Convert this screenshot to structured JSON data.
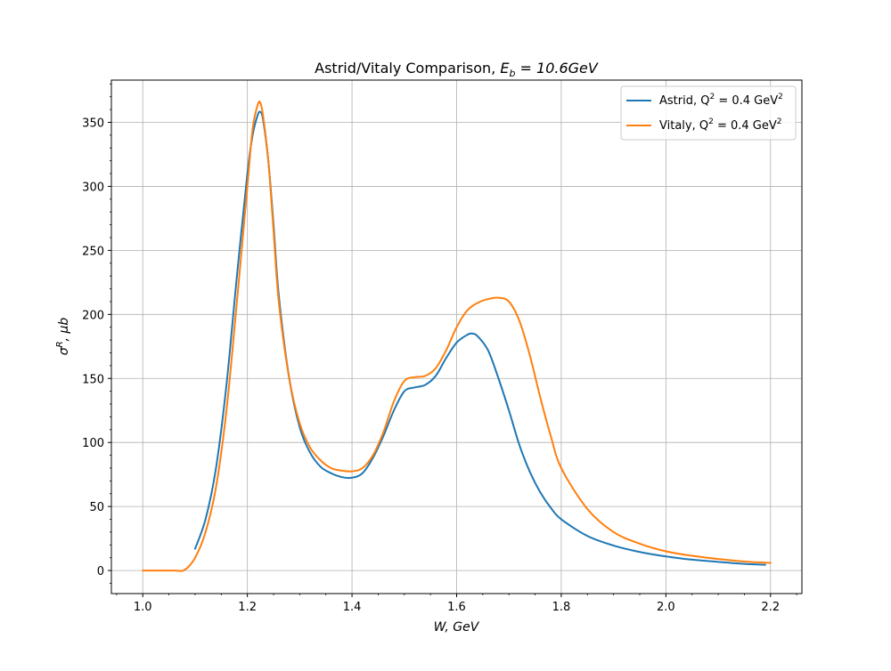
{
  "chart_data": {
    "type": "line",
    "title": "Astrid/Vitaly Comparison, E_b = 10.6GeV",
    "title_parts": {
      "prefix": "Astrid/Vitaly Comparison, ",
      "sym": "E",
      "sub": "b",
      "suffix": " = 10.6GeV"
    },
    "xlabel": "W, GeV",
    "ylabel": "σ^R, μb",
    "ylabel_parts": {
      "sym": "σ",
      "sup": "R",
      "suffix": ", μb"
    },
    "xlim": [
      0.94,
      2.26
    ],
    "ylim": [
      -18,
      383
    ],
    "x_ticks": [
      1.0,
      1.2,
      1.4,
      1.6,
      1.8,
      2.0,
      2.2
    ],
    "x_tick_labels": [
      "1.0",
      "1.2",
      "1.4",
      "1.6",
      "1.8",
      "2.0",
      "2.2"
    ],
    "y_ticks": [
      0,
      50,
      100,
      150,
      200,
      250,
      300,
      350
    ],
    "y_tick_labels": [
      "0",
      "50",
      "100",
      "150",
      "200",
      "250",
      "300",
      "350"
    ],
    "grid": true,
    "legend_position": "top-right",
    "series": [
      {
        "name": "Astrid, Q^2 = 0.4 GeV^2",
        "label_parts": {
          "prefix": "Astrid, Q",
          "sup": "2",
          "mid": " = 0.4 GeV",
          "sup2": "2"
        },
        "color": "#1f77b4",
        "x": [
          1.1,
          1.12,
          1.14,
          1.16,
          1.18,
          1.2,
          1.21,
          1.22,
          1.225,
          1.23,
          1.24,
          1.25,
          1.26,
          1.28,
          1.3,
          1.32,
          1.34,
          1.36,
          1.38,
          1.4,
          1.42,
          1.44,
          1.46,
          1.48,
          1.5,
          1.52,
          1.54,
          1.56,
          1.58,
          1.6,
          1.62,
          1.63,
          1.64,
          1.66,
          1.68,
          1.7,
          1.72,
          1.74,
          1.76,
          1.78,
          1.8,
          1.85,
          1.9,
          1.95,
          2.0,
          2.05,
          2.1,
          2.15,
          2.19
        ],
        "y": [
          17,
          40,
          80,
          145,
          230,
          310,
          340,
          356,
          358,
          352,
          320,
          270,
          215,
          150,
          112,
          92,
          81,
          76,
          73,
          72.5,
          76,
          88,
          105,
          125,
          140,
          143,
          145,
          152,
          166,
          178,
          184,
          185,
          183,
          172,
          150,
          125,
          98,
          77,
          61,
          49,
          40,
          27,
          19.5,
          14.5,
          11,
          8.5,
          6.8,
          5.2,
          4.5
        ]
      },
      {
        "name": "Vitaly, Q^2 = 0.4 GeV^2",
        "label_parts": {
          "prefix": "Vitaly, Q",
          "sup": "2",
          "mid": " = 0.4 GeV",
          "sup2": "2"
        },
        "color": "#ff7f0e",
        "x": [
          1.0,
          1.03,
          1.06,
          1.08,
          1.1,
          1.12,
          1.14,
          1.16,
          1.18,
          1.2,
          1.21,
          1.22,
          1.225,
          1.23,
          1.24,
          1.25,
          1.26,
          1.28,
          1.3,
          1.32,
          1.34,
          1.36,
          1.38,
          1.4,
          1.42,
          1.44,
          1.46,
          1.48,
          1.5,
          1.52,
          1.54,
          1.56,
          1.58,
          1.6,
          1.62,
          1.64,
          1.66,
          1.68,
          1.7,
          1.72,
          1.74,
          1.76,
          1.78,
          1.8,
          1.85,
          1.9,
          1.95,
          2.0,
          2.05,
          2.1,
          2.15,
          2.2
        ],
        "y": [
          0,
          0,
          0,
          0.5,
          10,
          30,
          65,
          125,
          210,
          300,
          345,
          364,
          365,
          355,
          320,
          265,
          210,
          150,
          115,
          96,
          86,
          80,
          78,
          77.5,
          80,
          90,
          108,
          132,
          148,
          151,
          152,
          158,
          172,
          190,
          203,
          209,
          212,
          213,
          210,
          195,
          168,
          135,
          105,
          80,
          48,
          30,
          21,
          15,
          11.5,
          9,
          7,
          6
        ]
      }
    ]
  }
}
